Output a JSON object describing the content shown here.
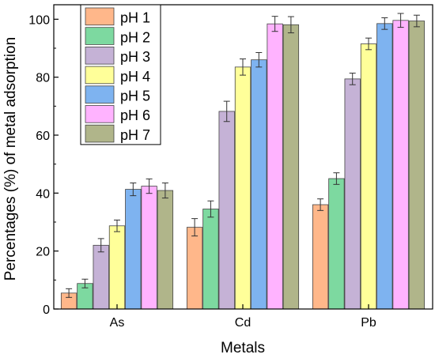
{
  "chart_data": {
    "type": "bar",
    "xlabel": "Metals",
    "ylabel": "Percentages (%) of metal adsorption",
    "categories": [
      "As",
      "Cd",
      "Pb"
    ],
    "ylim": [
      0,
      105
    ],
    "yticks": [
      0,
      20,
      40,
      60,
      80,
      100
    ],
    "legend_position": "top-left",
    "grid": false,
    "error_bars": true,
    "series": [
      {
        "name": "pH 1",
        "color": "#FFB78A",
        "values": [
          5.5,
          28.2,
          36.0
        ],
        "errors": [
          1.5,
          3.0,
          2.0
        ]
      },
      {
        "name": "pH 2",
        "color": "#7DD9A0",
        "values": [
          8.8,
          34.5,
          45.0
        ],
        "errors": [
          1.5,
          2.8,
          2.0
        ]
      },
      {
        "name": "pH 3",
        "color": "#C5B2D6",
        "values": [
          22.0,
          68.2,
          79.4
        ],
        "errors": [
          2.3,
          3.5,
          2.0
        ]
      },
      {
        "name": "pH 4",
        "color": "#FFFF99",
        "values": [
          28.7,
          83.5,
          91.5
        ],
        "errors": [
          2.0,
          2.8,
          2.0
        ]
      },
      {
        "name": "pH 5",
        "color": "#7EB3F0",
        "values": [
          41.3,
          86.0,
          98.5
        ],
        "errors": [
          2.2,
          2.5,
          2.0
        ]
      },
      {
        "name": "pH 6",
        "color": "#FFB3FF",
        "values": [
          42.4,
          98.4,
          99.6
        ],
        "errors": [
          2.5,
          2.6,
          2.4
        ]
      },
      {
        "name": "pH 7",
        "color": "#B0B58A",
        "values": [
          40.9,
          98.1,
          99.4
        ],
        "errors": [
          2.6,
          2.8,
          2.0
        ]
      }
    ]
  }
}
